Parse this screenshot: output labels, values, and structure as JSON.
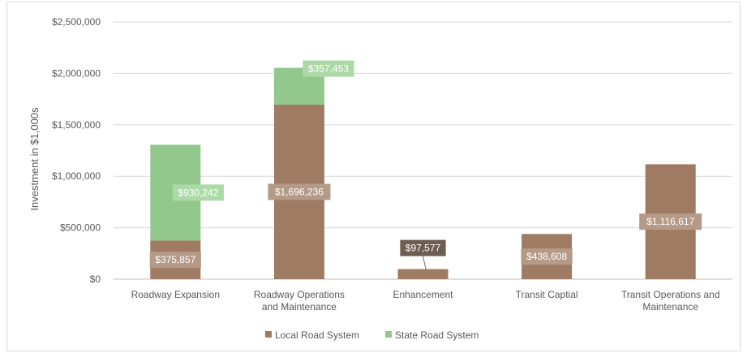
{
  "chart_data": {
    "type": "bar",
    "stacked": true,
    "ylabel": "Investment in $1,000s",
    "ylim": [
      0,
      2500000
    ],
    "y_ticks": [
      0,
      500000,
      1000000,
      1500000,
      2000000,
      2500000
    ],
    "y_tick_labels": [
      "$0",
      "$500,000",
      "$1,000,000",
      "$1,500,000",
      "$2,000,000",
      "$2,500,000"
    ],
    "categories": [
      [
        "Roadway Expansion"
      ],
      [
        "Roadway Operations",
        "and Maintenance"
      ],
      [
        "Enhancement"
      ],
      [
        "Transit Captial"
      ],
      [
        "Transit Operations and",
        "Maintenance"
      ]
    ],
    "series": [
      {
        "name": "Local Road System",
        "color": "#9e7b62",
        "values": [
          375857,
          1696236,
          97577,
          438608,
          1116617
        ],
        "labels": [
          "$375,857",
          "$1,696,236",
          "$97,577",
          "$438,608",
          "$1,116,617"
        ]
      },
      {
        "name": "State Road System",
        "color": "#92c88c",
        "values": [
          930242,
          357453,
          0,
          0,
          0
        ],
        "labels": [
          "$930,242",
          "$357,453",
          "",
          "",
          ""
        ]
      }
    ],
    "grid": true,
    "legend_position": "bottom"
  }
}
